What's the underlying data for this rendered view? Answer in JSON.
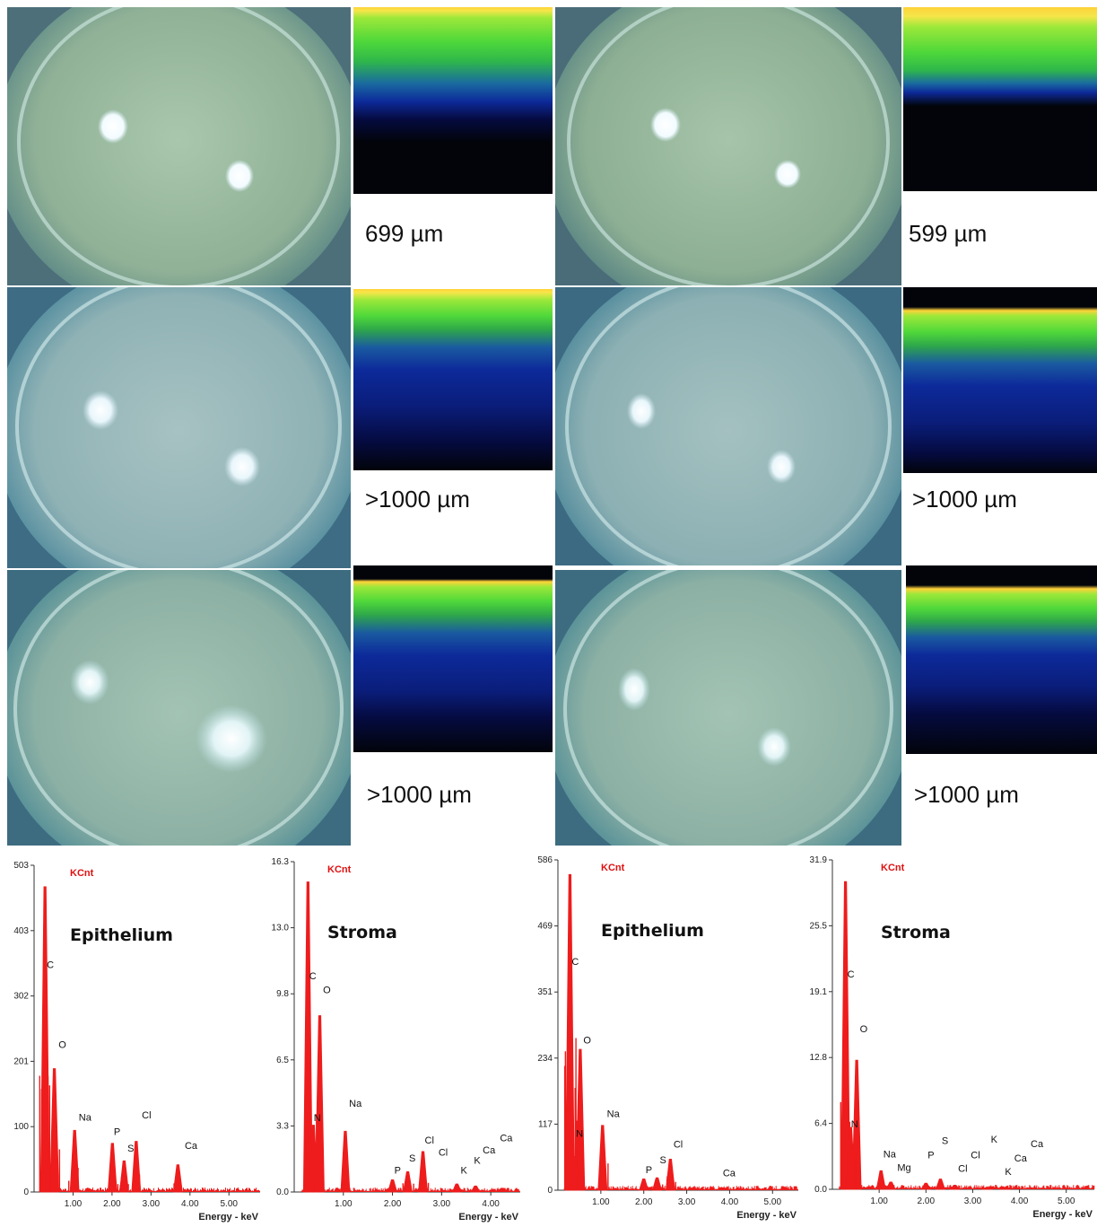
{
  "colors": {
    "eye_background": "#8fb09a",
    "oct_dark": "#02040a",
    "spectrum_red": "#ee1c1c",
    "kcnt_label": "#e01010"
  },
  "panels": [
    {
      "caption": "699 µm"
    },
    {
      "caption": "599 µm"
    },
    {
      "caption": ">1000 µm"
    },
    {
      "caption": ">1000 µm"
    },
    {
      "caption": ">1000 µm"
    },
    {
      "caption": ">1000 µm"
    }
  ],
  "chart_data": [
    {
      "type": "line",
      "title": "Epithelium",
      "ylabel": "KCnt",
      "xlabel": "Energy - keV",
      "yticks": [
        "0",
        "100",
        "201",
        "302",
        "403",
        "503"
      ],
      "ylim": [
        0,
        503
      ],
      "xticks": [
        "1.00",
        "2.00",
        "3.00",
        "4.00",
        "5.00"
      ],
      "xlim": [
        0,
        5.8
      ],
      "peaks": [
        {
          "x": 0.28,
          "y": 470
        },
        {
          "x": 0.52,
          "y": 190
        },
        {
          "x": 1.04,
          "y": 95
        },
        {
          "x": 2.01,
          "y": 75
        },
        {
          "x": 2.31,
          "y": 48
        },
        {
          "x": 2.62,
          "y": 78
        },
        {
          "x": 3.69,
          "y": 42
        }
      ],
      "element_labels": [
        {
          "text": "C",
          "x": 0.28,
          "y": 345
        },
        {
          "text": "O",
          "x": 0.58,
          "y": 222
        },
        {
          "text": "Na",
          "x": 1.1,
          "y": 110
        },
        {
          "text": "P",
          "x": 2.0,
          "y": 88
        },
        {
          "text": "S",
          "x": 2.35,
          "y": 62
        },
        {
          "text": "Cl",
          "x": 2.72,
          "y": 113
        },
        {
          "text": "Ca",
          "x": 3.82,
          "y": 66
        }
      ]
    },
    {
      "type": "line",
      "title": "Stroma",
      "ylabel": "KCnt",
      "xlabel": "Energy - keV",
      "yticks": [
        "0.0",
        "3.3",
        "6.5",
        "9.8",
        "13.0",
        "16.3"
      ],
      "ylim": [
        0,
        16.3
      ],
      "xticks": [
        "1.00",
        "2.00",
        "3.00",
        "4.00"
      ],
      "xlim": [
        0,
        4.6
      ],
      "peaks": [
        {
          "x": 0.28,
          "y": 15.3
        },
        {
          "x": 0.39,
          "y": 3.3
        },
        {
          "x": 0.52,
          "y": 8.7
        },
        {
          "x": 1.04,
          "y": 3.0
        },
        {
          "x": 2.0,
          "y": 0.6
        },
        {
          "x": 2.31,
          "y": 1.0
        },
        {
          "x": 2.62,
          "y": 2.0
        },
        {
          "x": 3.31,
          "y": 0.4
        },
        {
          "x": 3.69,
          "y": 0.3
        }
      ],
      "element_labels": [
        {
          "text": "C",
          "x": 0.27,
          "y": 10.5
        },
        {
          "text": "O",
          "x": 0.55,
          "y": 9.8
        },
        {
          "text": "N",
          "x": 0.36,
          "y": 3.5
        },
        {
          "text": "Na",
          "x": 1.08,
          "y": 4.2
        },
        {
          "text": "P",
          "x": 2.0,
          "y": 0.9
        },
        {
          "text": "S",
          "x": 2.3,
          "y": 1.5
        },
        {
          "text": "Cl",
          "x": 2.62,
          "y": 2.4
        },
        {
          "text": "Cl",
          "x": 2.9,
          "y": 1.8
        },
        {
          "text": "K",
          "x": 3.35,
          "y": 0.9
        },
        {
          "text": "K",
          "x": 3.62,
          "y": 1.4
        },
        {
          "text": "Ca",
          "x": 3.8,
          "y": 1.9
        },
        {
          "text": "Ca",
          "x": 4.15,
          "y": 2.5
        }
      ]
    },
    {
      "type": "line",
      "title": "Epithelium",
      "ylabel": "KCnt",
      "xlabel": "Energy - keV",
      "yticks": [
        "0",
        "117",
        "234",
        "351",
        "469",
        "586"
      ],
      "ylim": [
        0,
        586
      ],
      "xticks": [
        "1.00",
        "2.00",
        "3.00",
        "4.00",
        "5.00"
      ],
      "xlim": [
        0,
        5.6
      ],
      "peaks": [
        {
          "x": 0.28,
          "y": 560
        },
        {
          "x": 0.39,
          "y": 60
        },
        {
          "x": 0.52,
          "y": 250
        },
        {
          "x": 1.04,
          "y": 115
        },
        {
          "x": 2.0,
          "y": 20
        },
        {
          "x": 2.31,
          "y": 22
        },
        {
          "x": 2.62,
          "y": 55
        }
      ],
      "element_labels": [
        {
          "text": "C",
          "x": 0.28,
          "y": 400
        },
        {
          "text": "O",
          "x": 0.55,
          "y": 260
        },
        {
          "text": "N",
          "x": 0.38,
          "y": 95
        },
        {
          "text": "Na",
          "x": 1.1,
          "y": 130
        },
        {
          "text": "P",
          "x": 2.0,
          "y": 30
        },
        {
          "text": "S",
          "x": 2.33,
          "y": 48
        },
        {
          "text": "Cl",
          "x": 2.65,
          "y": 76
        },
        {
          "text": "Ca",
          "x": 3.8,
          "y": 25
        }
      ]
    },
    {
      "type": "line",
      "title": "Stroma",
      "ylabel": "KCnt",
      "xlabel": "Energy - keV",
      "yticks": [
        "0.0",
        "6.4",
        "12.8",
        "19.1",
        "25.5",
        "31.9"
      ],
      "ylim": [
        0,
        31.9
      ],
      "xticks": [
        "1.00",
        "2.00",
        "3.00",
        "4.00",
        "5.00"
      ],
      "xlim": [
        0,
        5.6
      ],
      "peaks": [
        {
          "x": 0.28,
          "y": 29.8
        },
        {
          "x": 0.39,
          "y": 6.0
        },
        {
          "x": 0.52,
          "y": 12.5
        },
        {
          "x": 1.04,
          "y": 1.8
        },
        {
          "x": 1.25,
          "y": 0.7
        },
        {
          "x": 2.0,
          "y": 0.6
        },
        {
          "x": 2.31,
          "y": 1.0
        },
        {
          "x": 2.62,
          "y": 0.4
        },
        {
          "x": 3.31,
          "y": 0.2
        },
        {
          "x": 3.69,
          "y": 0.2
        }
      ],
      "element_labels": [
        {
          "text": "C",
          "x": 0.28,
          "y": 20.5
        },
        {
          "text": "O",
          "x": 0.55,
          "y": 15.2
        },
        {
          "text": "N",
          "x": 0.36,
          "y": 6.0
        },
        {
          "text": "Na",
          "x": 1.05,
          "y": 3.1
        },
        {
          "text": "Mg",
          "x": 1.35,
          "y": 1.8
        },
        {
          "text": "P",
          "x": 2.0,
          "y": 3.0
        },
        {
          "text": "S",
          "x": 2.3,
          "y": 4.4
        },
        {
          "text": "Cl",
          "x": 2.65,
          "y": 1.7
        },
        {
          "text": "Cl",
          "x": 2.92,
          "y": 3.0
        },
        {
          "text": "K",
          "x": 3.35,
          "y": 4.5
        },
        {
          "text": "K",
          "x": 3.65,
          "y": 1.4
        },
        {
          "text": "Ca",
          "x": 3.85,
          "y": 2.7
        },
        {
          "text": "Ca",
          "x": 4.2,
          "y": 4.1
        }
      ]
    }
  ]
}
